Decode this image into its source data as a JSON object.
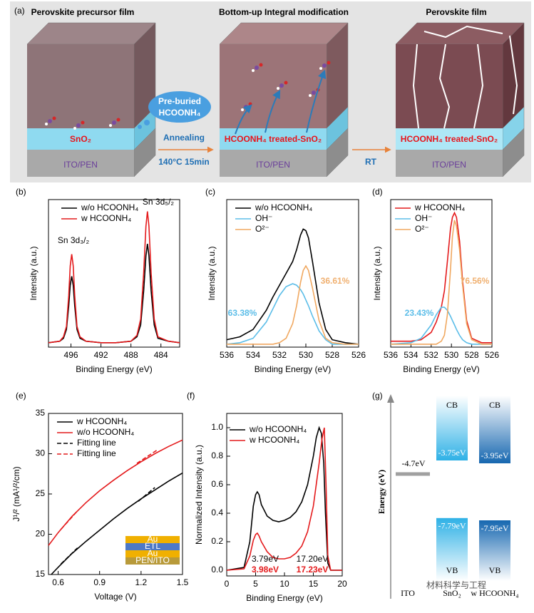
{
  "diagram": {
    "panel": "(a)",
    "stages": [
      {
        "title": "Perovskite precursor film",
        "layer": "SnO₂",
        "substrate": "ITO/PEN"
      },
      {
        "title": "Bottom-up Integral modification",
        "layer": "HCOONH₄ treated-SnO₂",
        "substrate": "ITO/PEN"
      },
      {
        "title": "Perovskite film",
        "layer": "HCOONH₄ treated-SnO₂",
        "substrate": "ITO/PEN"
      }
    ],
    "bubble": [
      "Pre-buried",
      "HCOONH₄"
    ],
    "step1": "Annealing",
    "step1_condition": "140°C 15min",
    "step2": "RT"
  },
  "chart_data": [
    {
      "type": "line",
      "panel": "(b)",
      "xlabel": "Binding Energy (eV)",
      "ylabel": "Intensity (a.u.)",
      "xlim": [
        499,
        481.5
      ],
      "xticks": [
        496,
        492,
        488,
        484
      ],
      "ylim": [
        0,
        1
      ],
      "series": [
        {
          "name": "w/o HCOONH₄",
          "color": "#000000",
          "x": [
            499,
            497.5,
            497,
            496.6,
            496.3,
            496.1,
            495.9,
            495.7,
            495.5,
            495.2,
            494.8,
            494,
            492,
            490,
            488,
            487.2,
            486.7,
            486.3,
            486.0,
            485.8,
            485.6,
            485.3,
            484.9,
            484.4,
            483,
            481.5
          ],
          "values": [
            0.03,
            0.04,
            0.06,
            0.12,
            0.28,
            0.42,
            0.48,
            0.42,
            0.28,
            0.12,
            0.06,
            0.04,
            0.03,
            0.03,
            0.04,
            0.07,
            0.15,
            0.38,
            0.62,
            0.7,
            0.62,
            0.38,
            0.15,
            0.06,
            0.04,
            0.03
          ]
        },
        {
          "name": "w  HCOONH₄",
          "color": "#e41a1c",
          "x": [
            499,
            497.5,
            497,
            496.6,
            496.3,
            496.1,
            495.9,
            495.7,
            495.5,
            495.2,
            494.8,
            494,
            492,
            490,
            488,
            487.2,
            486.7,
            486.3,
            486.0,
            485.8,
            485.6,
            485.3,
            484.9,
            484.4,
            483,
            481.5
          ],
          "values": [
            0.03,
            0.04,
            0.07,
            0.14,
            0.35,
            0.55,
            0.63,
            0.55,
            0.35,
            0.14,
            0.07,
            0.04,
            0.03,
            0.03,
            0.04,
            0.08,
            0.19,
            0.5,
            0.82,
            0.92,
            0.82,
            0.5,
            0.19,
            0.07,
            0.04,
            0.03
          ]
        }
      ],
      "annotations": [
        {
          "text": "Sn 3d₃/₂",
          "color": "#000000"
        },
        {
          "text": "Sn 3d₅/₂",
          "color": "#000000"
        }
      ]
    },
    {
      "type": "line",
      "panel": "(c)",
      "xlabel": "Binding Energy (eV)",
      "ylabel": "Intensity (a.u.)",
      "xlim": [
        536,
        526
      ],
      "xticks": [
        536,
        534,
        532,
        530,
        528,
        526
      ],
      "ylim": [
        0,
        1
      ],
      "series": [
        {
          "name": "w/o HCOONH₄",
          "color": "#000000",
          "x": [
            536,
            535,
            534,
            533,
            532.5,
            532,
            531.5,
            531,
            530.7,
            530.4,
            530.2,
            530,
            529.8,
            529.5,
            529,
            528.5,
            528,
            527,
            526
          ],
          "values": [
            0.05,
            0.07,
            0.12,
            0.25,
            0.34,
            0.42,
            0.5,
            0.58,
            0.66,
            0.76,
            0.8,
            0.79,
            0.74,
            0.58,
            0.3,
            0.12,
            0.05,
            0.03,
            0.02
          ]
        },
        {
          "name": "OH⁻",
          "color": "#5bbde8",
          "x": [
            536,
            535,
            534,
            533,
            532.5,
            532,
            531.5,
            531,
            530.7,
            530.4,
            530.2,
            530,
            529.8,
            529.5,
            529,
            528.5,
            528,
            527,
            526
          ],
          "values": [
            0.02,
            0.03,
            0.06,
            0.17,
            0.26,
            0.35,
            0.41,
            0.43,
            0.42,
            0.39,
            0.36,
            0.32,
            0.28,
            0.21,
            0.11,
            0.05,
            0.02,
            0.02,
            0.02
          ]
        },
        {
          "name": "O²⁻",
          "color": "#f0a860",
          "x": [
            536,
            535,
            534,
            533,
            532.5,
            532,
            531.5,
            531,
            530.7,
            530.4,
            530.2,
            530,
            529.8,
            529.5,
            529,
            528.5,
            528,
            527,
            526
          ],
          "values": [
            0.02,
            0.02,
            0.02,
            0.02,
            0.02,
            0.03,
            0.06,
            0.16,
            0.28,
            0.44,
            0.52,
            0.55,
            0.52,
            0.4,
            0.18,
            0.06,
            0.03,
            0.02,
            0.02
          ]
        }
      ],
      "annotations": [
        {
          "text": "63.38%",
          "color": "#5bbde8"
        },
        {
          "text": "36.61%",
          "color": "#f0b070"
        }
      ]
    },
    {
      "type": "line",
      "panel": "(d)",
      "xlabel": "Binding Energy (eV)",
      "ylabel": "Intensity (a.u.)",
      "xlim": [
        536,
        526
      ],
      "xticks": [
        536,
        534,
        532,
        530,
        528,
        526
      ],
      "ylim": [
        0,
        1
      ],
      "series": [
        {
          "name": "w  HCOONH₄",
          "color": "#e41a1c",
          "x": [
            536,
            534,
            533,
            532,
            531.5,
            531,
            530.7,
            530.4,
            530.1,
            529.9,
            529.7,
            529.5,
            529.2,
            528.9,
            528.5,
            528,
            527,
            526
          ],
          "values": [
            0.04,
            0.04,
            0.05,
            0.1,
            0.17,
            0.27,
            0.38,
            0.58,
            0.8,
            0.88,
            0.91,
            0.88,
            0.72,
            0.45,
            0.18,
            0.06,
            0.03,
            0.03
          ]
        },
        {
          "name": "OH⁻",
          "color": "#5bbde8",
          "x": [
            536,
            534,
            533,
            532,
            531.5,
            531,
            530.7,
            530.4,
            530.1,
            529.9,
            529.7,
            529.5,
            529.2,
            528.9,
            528.5,
            528,
            527,
            526
          ],
          "values": [
            0.02,
            0.03,
            0.06,
            0.15,
            0.22,
            0.27,
            0.27,
            0.25,
            0.21,
            0.18,
            0.15,
            0.12,
            0.08,
            0.05,
            0.03,
            0.02,
            0.02,
            0.02
          ]
        },
        {
          "name": "O²⁻",
          "color": "#f0a860",
          "x": [
            536,
            534,
            533,
            532,
            531.5,
            531,
            530.7,
            530.4,
            530.1,
            529.9,
            529.7,
            529.5,
            529.2,
            528.9,
            528.5,
            528,
            527,
            526
          ],
          "values": [
            0.02,
            0.02,
            0.02,
            0.02,
            0.02,
            0.04,
            0.08,
            0.22,
            0.52,
            0.75,
            0.86,
            0.82,
            0.66,
            0.42,
            0.16,
            0.05,
            0.02,
            0.02
          ]
        }
      ],
      "annotations": [
        {
          "text": "23.43%",
          "color": "#5bbde8"
        },
        {
          "text": "76.56%",
          "color": "#f0b070"
        }
      ]
    },
    {
      "type": "line",
      "panel": "(e)",
      "xlabel": "Voltage (V)",
      "ylabel": "J¹/² (mA¹/²/cm)",
      "xlim": [
        0.53,
        1.5
      ],
      "xticks": [
        0.6,
        0.9,
        1.2,
        1.5
      ],
      "ylim": [
        15,
        35
      ],
      "yticks": [
        15,
        20,
        25,
        30,
        35
      ],
      "series": [
        {
          "name": "w HCOONH₄",
          "color": "#000000",
          "x": [
            0.55,
            0.6,
            0.7,
            0.8,
            0.9,
            1.0,
            1.1,
            1.2,
            1.3,
            1.4,
            1.5
          ],
          "values": [
            15.0,
            15.9,
            17.6,
            19.1,
            20.5,
            21.9,
            23.2,
            24.4,
            25.5,
            26.6,
            27.6
          ]
        },
        {
          "name": "w/o HCOONH₄",
          "color": "#e41a1c",
          "x": [
            0.53,
            0.6,
            0.7,
            0.8,
            0.9,
            1.0,
            1.1,
            1.2,
            1.3,
            1.4,
            1.5
          ],
          "values": [
            18.6,
            20.2,
            22.2,
            23.9,
            25.4,
            26.7,
            27.9,
            29.0,
            30.0,
            30.9,
            31.7
          ]
        },
        {
          "name": "Fitting line",
          "color": "#000000",
          "dash": true,
          "x": [
            0.62,
            0.74,
            0.96,
            1.18,
            1.3
          ],
          "values": [
            16.3,
            18.3,
            null,
            24.1,
            25.8
          ]
        },
        {
          "name": "Fitting line",
          "color": "#e41a1c",
          "dash": true,
          "x": [
            0.62,
            0.74,
            0.96,
            1.17,
            1.32
          ],
          "values": [
            20.6,
            22.9,
            null,
            28.8,
            30.5
          ]
        }
      ],
      "inset": [
        "Au",
        "ETL",
        "Au",
        "PEN/ITO"
      ],
      "annotations": []
    },
    {
      "type": "line",
      "panel": "(f)",
      "xlabel": "Binding Energy (eV)",
      "ylabel": "Normalized Intensity (a.u.)",
      "xlim": [
        0,
        20
      ],
      "xticks": [
        0,
        5,
        10,
        15,
        20
      ],
      "ylim": [
        -0.04,
        1.1
      ],
      "yticks": [
        {
          "value": 0,
          "label": "0.0"
        },
        0.2,
        0.4,
        0.6,
        0.8,
        {
          "value": 1,
          "label": "1.0"
        }
      ],
      "series": [
        {
          "name": "w/o HCOONH₄",
          "color": "#000000",
          "x": [
            0,
            3,
            4,
            4.6,
            5,
            5.3,
            5.6,
            6,
            7,
            8,
            9,
            10,
            11,
            12,
            13,
            14,
            15,
            15.5,
            16,
            16.4,
            16.8,
            17.1,
            17.5,
            18,
            20
          ],
          "values": [
            0,
            0.02,
            0.2,
            0.45,
            0.53,
            0.55,
            0.53,
            0.46,
            0.38,
            0.35,
            0.34,
            0.35,
            0.37,
            0.41,
            0.48,
            0.6,
            0.8,
            0.93,
            1.0,
            0.96,
            0.75,
            0.4,
            0.05,
            0,
            0
          ]
        },
        {
          "name": "w HCOONH₄",
          "color": "#e41a1c",
          "x": [
            0,
            3,
            4,
            4.6,
            5,
            5.3,
            5.6,
            6,
            7,
            8,
            9,
            10,
            11,
            12,
            13,
            14,
            15,
            16,
            16.5,
            16.9,
            17.2,
            17.5,
            18,
            20
          ],
          "values": [
            0,
            0.01,
            0.1,
            0.21,
            0.25,
            0.26,
            0.24,
            0.2,
            0.13,
            0.09,
            0.08,
            0.08,
            0.09,
            0.12,
            0.17,
            0.27,
            0.45,
            0.75,
            0.92,
            1.0,
            0.6,
            0.1,
            0,
            0
          ]
        }
      ],
      "annotations": [
        {
          "text": "3.79eV",
          "color": "#000000"
        },
        {
          "text": "3.98eV",
          "color": "#e41a1c"
        },
        {
          "text": "17.20eV",
          "color": "#000000"
        },
        {
          "text": "17.23eV",
          "color": "#e41a1c"
        }
      ]
    },
    {
      "type": "energy-level",
      "panel": "(g)",
      "ylabel": "Energy (eV)",
      "ylim": [
        -12.2,
        0.8
      ],
      "reference": {
        "name": "ITO",
        "value": -4.7,
        "label": "-4.7eV",
        "color": "#a0a0a0"
      },
      "bands": [
        {
          "name": "SnO₂",
          "color": "#2fb1e6",
          "cb": -3.75,
          "cb_label": "-3.75eV",
          "vb": -7.79,
          "vb_label": "-7.79eV",
          "cb_name": "CB",
          "vb_name": "VB"
        },
        {
          "name": "w HCOONH₄",
          "color": "#1667b0",
          "cb": -3.95,
          "cb_label": "-3.95eV",
          "vb": -7.95,
          "vb_label": "-7.95eV",
          "cb_name": "CB",
          "vb_name": "VB"
        }
      ]
    }
  ],
  "watermark": "材料科学与工程"
}
